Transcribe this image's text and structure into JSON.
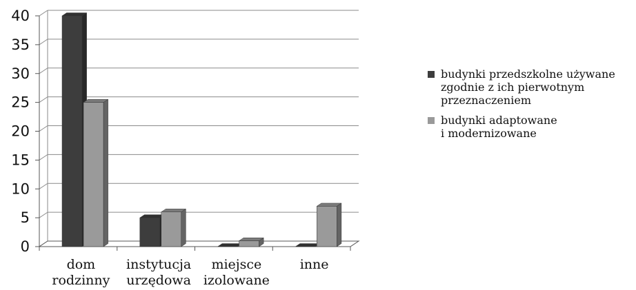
{
  "chart_data": {
    "type": "bar",
    "categories": [
      [
        "dom",
        "rodzinny"
      ],
      [
        "instytucja",
        "urzędowa"
      ],
      [
        "miejsce",
        "izolowane"
      ],
      [
        "inne"
      ]
    ],
    "series": [
      {
        "name": "budynki przedszkolne używane zgodnie z ich pierwotnym przeznaczeniem",
        "values": [
          40,
          5,
          0,
          0
        ],
        "color": "#3d3d3d"
      },
      {
        "name": "budynki adaptowane i modernizowane",
        "values": [
          25,
          6,
          1,
          7
        ],
        "color": "#9a9a9a"
      }
    ],
    "yticks": [
      0,
      5,
      10,
      15,
      20,
      25,
      30,
      35,
      40
    ],
    "ylim": [
      0,
      40
    ],
    "grid": true,
    "legend_position": "right",
    "legend_lines": [
      [
        "budynki przedszkolne używane",
        "zgodnie z ich pierwotnym",
        "przeznaczeniem"
      ],
      [
        "budynki adaptowane",
        "i modernizowane"
      ]
    ]
  }
}
